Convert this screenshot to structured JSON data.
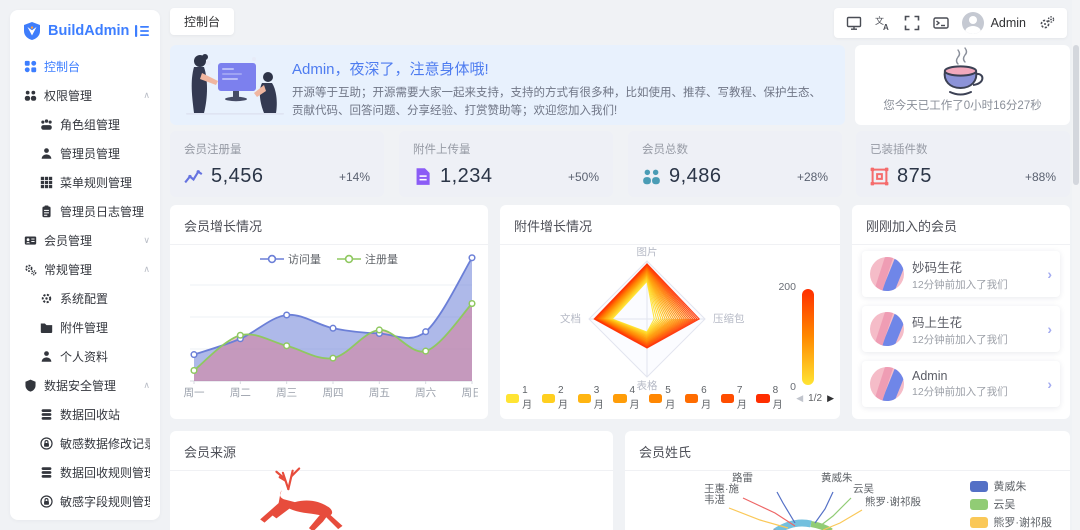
{
  "app": {
    "primary_color": "#3d7eff",
    "background": "#f0f2f5"
  },
  "sidebar": {
    "logo_text": "BuildAdmin",
    "items": [
      {
        "label": "控制台",
        "icon": "dashboard-icon",
        "depth": 0,
        "active": true
      },
      {
        "label": "权限管理",
        "icon": "users-group-icon",
        "depth": 0,
        "arrow": "up"
      },
      {
        "label": "角色组管理",
        "icon": "roles-icon",
        "depth": 1
      },
      {
        "label": "管理员管理",
        "icon": "admin-user-icon",
        "depth": 1
      },
      {
        "label": "菜单规则管理",
        "icon": "menu-grid-icon",
        "depth": 1
      },
      {
        "label": "管理员日志管理",
        "icon": "clipboard-icon",
        "depth": 1
      },
      {
        "label": "会员管理",
        "icon": "member-card-icon",
        "depth": 0,
        "arrow": "down"
      },
      {
        "label": "常规管理",
        "icon": "gears-icon",
        "depth": 0,
        "arrow": "up"
      },
      {
        "label": "系统配置",
        "icon": "gear-icon",
        "depth": 1
      },
      {
        "label": "附件管理",
        "icon": "folder-icon",
        "depth": 1
      },
      {
        "label": "个人资料",
        "icon": "person-icon",
        "depth": 1
      },
      {
        "label": "数据安全管理",
        "icon": "shield-icon",
        "depth": 0,
        "arrow": "up"
      },
      {
        "label": "数据回收站",
        "icon": "database-icon",
        "depth": 1
      },
      {
        "label": "敏感数据修改记录",
        "icon": "lock-circle-icon",
        "depth": 1
      },
      {
        "label": "数据回收规则管理",
        "icon": "database-icon",
        "depth": 1
      },
      {
        "label": "敏感字段规则管理",
        "icon": "lock-circle-icon",
        "depth": 1
      }
    ]
  },
  "header": {
    "tab": "控制台",
    "action_icons": [
      "monitor-icon",
      "translate-icon",
      "fullscreen-icon",
      "terminal-icon"
    ],
    "user": {
      "name": "Admin"
    }
  },
  "welcome": {
    "title": "Admin，夜深了，注意身体哦!",
    "body": "开源等于互助；开源需要大家一起来支持，支持的方式有很多种，比如使用、推荐、写教程、保护生态、贡献代码、回答问题、分享经验、打赏赞助等；欢迎您加入我们!"
  },
  "worktime": {
    "text": "您今天已工作了0小时16分27秒"
  },
  "stats": [
    {
      "label": "会员注册量",
      "value": "5,456",
      "delta": "+14%",
      "icon": "line-chart-icon",
      "color": "#6673e0"
    },
    {
      "label": "附件上传量",
      "value": "1,234",
      "delta": "+50%",
      "icon": "document-icon",
      "color": "#8b5cf6"
    },
    {
      "label": "会员总数",
      "value": "9,486",
      "delta": "+28%",
      "icon": "members-icon",
      "color": "#4a9cb5"
    },
    {
      "label": "已装插件数",
      "value": "875",
      "delta": "+88%",
      "icon": "plugin-icon",
      "color": "#f56c6c"
    }
  ],
  "new_members": {
    "title": "刚刚加入的会员",
    "items": [
      {
        "name": "妙码生花",
        "time": "12分钟前加入了我们"
      },
      {
        "name": "码上生花",
        "time": "12分钟前加入了我们"
      },
      {
        "name": "Admin",
        "time": "12分钟前加入了我们"
      }
    ]
  },
  "chart_data": [
    {
      "id": "member-growth",
      "type": "area",
      "title": "会员增长情况",
      "categories": [
        "周一",
        "周二",
        "周三",
        "周四",
        "周五",
        "周六",
        "周日"
      ],
      "series": [
        {
          "name": "访问量",
          "color": "#6b7fd7",
          "fill": "rgba(107,127,215,0.55)",
          "values": [
            30,
            48,
            75,
            60,
            54,
            56,
            140
          ]
        },
        {
          "name": "注册量",
          "color": "#8fc860",
          "fill": "rgba(226,115,136,0.45)",
          "values": [
            12,
            52,
            40,
            26,
            58,
            34,
            88
          ]
        }
      ],
      "ylim": [
        0,
        150
      ],
      "grid": true,
      "legend_position": "top"
    },
    {
      "id": "attachment-growth",
      "type": "radar",
      "title": "附件增长情况",
      "indicators": [
        {
          "name": "图片",
          "max": 200
        },
        {
          "name": "压缩包",
          "max": 200
        },
        {
          "name": "表格",
          "max": 200
        },
        {
          "name": "文档",
          "max": 200
        }
      ],
      "series": [
        {
          "name": "1月",
          "color": "#ffe433",
          "values": [
            130,
            25,
            45,
            120
          ]
        },
        {
          "name": "2月",
          "color": "#ffcf1f",
          "values": [
            140,
            48,
            52,
            130
          ]
        },
        {
          "name": "3月",
          "color": "#ffb511",
          "values": [
            150,
            70,
            60,
            140
          ]
        },
        {
          "name": "4月",
          "color": "#ff9d08",
          "values": [
            158,
            92,
            68,
            150
          ]
        },
        {
          "name": "5月",
          "color": "#ff8702",
          "values": [
            166,
            114,
            76,
            158
          ]
        },
        {
          "name": "6月",
          "color": "#ff6c00",
          "values": [
            174,
            136,
            84,
            166
          ]
        },
        {
          "name": "7月",
          "color": "#ff4d00",
          "values": [
            182,
            158,
            92,
            174
          ]
        },
        {
          "name": "8月",
          "color": "#ff2e00",
          "values": [
            190,
            180,
            100,
            182
          ]
        }
      ],
      "visual_map": {
        "max_label": "200",
        "min_label": "0",
        "colors": [
          "#ff2e00",
          "#ffe433"
        ]
      },
      "pagination": {
        "label": "1/2"
      },
      "legend_position": "bottom"
    },
    {
      "id": "member-source",
      "type": "pictorial",
      "title": "会员来源",
      "symbol": "deer",
      "symbol_color": "#e74c3c"
    },
    {
      "id": "member-surname",
      "type": "pie",
      "title": "会员姓氏",
      "legend": [
        {
          "name": "黄威朱",
          "color": "#5470c6"
        },
        {
          "name": "云吴",
          "color": "#91cc75"
        },
        {
          "name": "熊罗·谢祁殷",
          "color": "#fac858"
        }
      ],
      "visible_labels": [
        "路雷",
        "黄威朱",
        "王惠·施",
        "云吴",
        "韦湛",
        "熊罗·谢祁殷"
      ],
      "legend_position": "right"
    }
  ]
}
